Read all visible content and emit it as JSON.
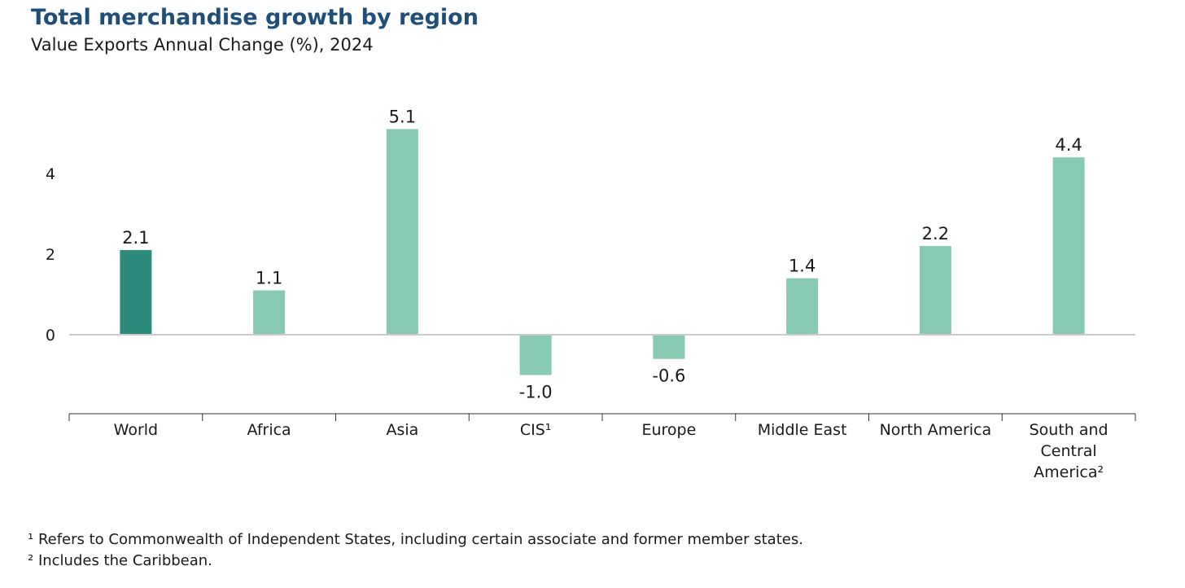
{
  "chart_data": {
    "type": "bar",
    "title": "Total merchandise growth by region",
    "subtitle": "Value Exports Annual Change (%), 2024",
    "categories": [
      "World",
      "Africa",
      "Asia",
      "CIS¹",
      "Europe",
      "Middle East",
      "North America",
      "South and Central America²"
    ],
    "category_label_lines": [
      [
        "World"
      ],
      [
        "Africa"
      ],
      [
        "Asia"
      ],
      [
        "CIS¹"
      ],
      [
        "Europe"
      ],
      [
        "Middle East"
      ],
      [
        "North America"
      ],
      [
        "South and",
        "Central",
        "America²"
      ]
    ],
    "values": [
      2.1,
      1.1,
      5.1,
      -1.0,
      -0.6,
      1.4,
      2.2,
      4.4
    ],
    "value_labels": [
      "2.1",
      "1.1",
      "5.1",
      "-1.0",
      "-0.6",
      "1.4",
      "2.2",
      "4.4"
    ],
    "highlight_index": 0,
    "yticks": [
      "0",
      "2",
      "4"
    ],
    "ytick_values": [
      0,
      2,
      4
    ],
    "ylim": [
      -2,
      6
    ],
    "grid": false,
    "xlabel": "",
    "ylabel": "",
    "colors": {
      "highlight": "#2e8b7c",
      "bar": "#88c9b1",
      "axis": "#cccccc",
      "axis_dark": "#333333"
    }
  },
  "footnotes": [
    "¹ Refers to Commonwealth of Independent States, including certain associate and former member states.",
    "² Includes the Caribbean."
  ]
}
